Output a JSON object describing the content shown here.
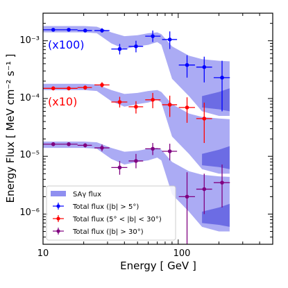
{
  "chart_data": {
    "type": "scatter",
    "xlabel": "Energy [ GeV ]",
    "ylabel": "Energy Flux [ MeV cm⁻² s⁻¹ ]",
    "xscale": "log",
    "yscale": "log",
    "xlim": [
      10,
      500
    ],
    "ylim": [
      3e-07,
      0.003
    ],
    "x_tick_labels": [
      "10",
      "100"
    ],
    "y_tick_labels": [
      "10⁻⁶",
      "10⁻⁵",
      "10⁻⁴",
      "10⁻³"
    ],
    "legend_position": "lower-left",
    "legend": [
      "SAγ flux",
      "Total flux (|b| > 5°)",
      "Total flux (5° < |b| < 30°)",
      "Total flux (|b| > 30°)"
    ],
    "annotations": [
      {
        "text": "(x100)",
        "color": "#0000ff"
      },
      {
        "text": "(x10)",
        "color": "#ff0000"
      }
    ],
    "band": {
      "name": "SAγ flux",
      "color": "#8f8ff0",
      "x": [
        10,
        20,
        25,
        32,
        40,
        50,
        60,
        70,
        75,
        90,
        120,
        150,
        200,
        240
      ],
      "groups": [
        {
          "upper": [
            0.0018,
            0.0018,
            0.00175,
            0.0014,
            0.0012,
            0.00125,
            0.00135,
            0.0014,
            0.0013,
            0.0008,
            0.00055,
            0.00048,
            0.00045,
            0.00044
          ],
          "lower": [
            0.0014,
            0.0014,
            0.00135,
            0.0009,
            0.00072,
            0.0008,
            0.00085,
            0.00095,
            0.00085,
            0.00022,
            0.00011,
            6e-05,
            5e-05,
            5e-05
          ],
          "inner_upper": [
            null,
            null,
            null,
            null,
            null,
            null,
            null,
            null,
            null,
            null,
            null,
            0.00011,
            0.00013,
            0.00015
          ],
          "inner_lower": [
            null,
            null,
            null,
            null,
            null,
            null,
            null,
            null,
            null,
            null,
            null,
            7e-05,
            6.5e-05,
            6e-05
          ]
        },
        {
          "upper": [
            0.00018,
            0.00018,
            0.000175,
            0.00014,
            0.00012,
            0.000125,
            0.000135,
            0.00014,
            0.00013,
            8e-05,
            5.5e-05,
            4.8e-05,
            4.5e-05,
            4.4e-05
          ],
          "lower": [
            0.00014,
            0.00014,
            0.000135,
            9e-05,
            7.2e-05,
            8e-05,
            8.5e-05,
            9.5e-05,
            8.5e-05,
            2.2e-05,
            1.1e-05,
            6e-06,
            5e-06,
            5e-06
          ],
          "inner_upper": [
            null,
            null,
            null,
            null,
            null,
            null,
            null,
            null,
            null,
            null,
            null,
            1.1e-05,
            1.3e-05,
            1.5e-05
          ],
          "inner_lower": [
            null,
            null,
            null,
            null,
            null,
            null,
            null,
            null,
            null,
            null,
            null,
            7e-06,
            6.5e-06,
            6e-06
          ]
        },
        {
          "upper": [
            1.8e-05,
            1.8e-05,
            1.75e-05,
            1.4e-05,
            1.2e-05,
            1.25e-05,
            1.35e-05,
            1.4e-05,
            1.3e-05,
            8e-06,
            5.5e-06,
            4.8e-06,
            4.5e-06,
            4.4e-06
          ],
          "lower": [
            1.4e-05,
            1.4e-05,
            1.35e-05,
            9e-06,
            7.2e-06,
            8e-06,
            8.5e-06,
            9.5e-06,
            8.5e-06,
            2.2e-06,
            1.1e-06,
            6e-07,
            5e-07,
            5e-07
          ],
          "inner_upper": [
            null,
            null,
            null,
            null,
            null,
            null,
            null,
            null,
            null,
            null,
            null,
            1.1e-06,
            1.3e-06,
            1.5e-06
          ],
          "inner_lower": [
            null,
            null,
            null,
            null,
            null,
            null,
            null,
            null,
            null,
            null,
            null,
            7e-07,
            6.5e-07,
            6e-07
          ]
        }
      ]
    },
    "series": [
      {
        "name": "Total flux (|b| > 5°)",
        "color": "#0000ff",
        "points": [
          {
            "x": 11.9,
            "xlo": 10,
            "xhi": 14,
            "y": 0.00155,
            "ylo": 0.00145,
            "yhi": 0.00165
          },
          {
            "x": 15.5,
            "xlo": 14,
            "xhi": 18,
            "y": 0.00155,
            "ylo": 0.00145,
            "yhi": 0.00165
          },
          {
            "x": 20.5,
            "xlo": 18,
            "xhi": 23,
            "y": 0.0015,
            "ylo": 0.0014,
            "yhi": 0.0016
          },
          {
            "x": 27.3,
            "xlo": 24,
            "xhi": 31,
            "y": 0.0015,
            "ylo": 0.00138,
            "yhi": 0.00165
          },
          {
            "x": 36.9,
            "xlo": 32,
            "xhi": 42,
            "y": 0.00072,
            "ylo": 0.00058,
            "yhi": 0.00088
          },
          {
            "x": 48.7,
            "xlo": 43,
            "xhi": 55,
            "y": 0.0008,
            "ylo": 0.00063,
            "yhi": 0.001
          },
          {
            "x": 64.8,
            "xlo": 57,
            "xhi": 74,
            "y": 0.0012,
            "ylo": 0.00095,
            "yhi": 0.0015
          },
          {
            "x": 86.6,
            "xlo": 76,
            "xhi": 98,
            "y": 0.00105,
            "ylo": 0.00072,
            "yhi": 0.00145
          },
          {
            "x": 116.2,
            "xlo": 101,
            "xhi": 133,
            "y": 0.00038,
            "ylo": 0.00023,
            "yhi": 0.00056
          },
          {
            "x": 155.7,
            "xlo": 136,
            "xhi": 178,
            "y": 0.00035,
            "ylo": 0.00019,
            "yhi": 0.00053
          },
          {
            "x": 211,
            "xlo": 183,
            "xhi": 241,
            "y": 0.00023,
            "ylo": 6e-05,
            "yhi": 0.00045
          }
        ]
      },
      {
        "name": "Total flux (5° < |b| < 30°)",
        "color": "#ff0000",
        "points": [
          {
            "x": 11.9,
            "xlo": 10,
            "xhi": 14,
            "y": 0.00015,
            "ylo": 0.000138,
            "yhi": 0.000162
          },
          {
            "x": 15.5,
            "xlo": 14,
            "xhi": 18,
            "y": 0.00015,
            "ylo": 0.000138,
            "yhi": 0.000162
          },
          {
            "x": 20.5,
            "xlo": 18,
            "xhi": 23,
            "y": 0.000155,
            "ylo": 0.000142,
            "yhi": 0.000168
          },
          {
            "x": 27.3,
            "xlo": 24,
            "xhi": 31,
            "y": 0.000172,
            "ylo": 0.000155,
            "yhi": 0.000192
          },
          {
            "x": 36.9,
            "xlo": 32,
            "xhi": 42,
            "y": 8.7e-05,
            "ylo": 7e-05,
            "yhi": 0.000107
          },
          {
            "x": 48.7,
            "xlo": 43,
            "xhi": 55,
            "y": 7.2e-05,
            "ylo": 5.5e-05,
            "yhi": 9e-05
          },
          {
            "x": 64.8,
            "xlo": 57,
            "xhi": 74,
            "y": 9.5e-05,
            "ylo": 6.8e-05,
            "yhi": 0.000125
          },
          {
            "x": 86.6,
            "xlo": 76,
            "xhi": 98,
            "y": 7.8e-05,
            "ylo": 4.8e-05,
            "yhi": 0.000112
          },
          {
            "x": 116.2,
            "xlo": 101,
            "xhi": 133,
            "y": 7e-05,
            "ylo": 3.8e-05,
            "yhi": 0.000105
          },
          {
            "x": 155.7,
            "xlo": 136,
            "xhi": 178,
            "y": 4.5e-05,
            "ylo": 1.7e-05,
            "yhi": 8.5e-05
          }
        ]
      },
      {
        "name": "Total flux (|b| > 30°)",
        "color": "#800080",
        "points": [
          {
            "x": 11.9,
            "xlo": 10,
            "xhi": 14,
            "y": 1.62e-05,
            "ylo": 1.5e-05,
            "yhi": 1.75e-05
          },
          {
            "x": 15.5,
            "xlo": 14,
            "xhi": 18,
            "y": 1.62e-05,
            "ylo": 1.5e-05,
            "yhi": 1.75e-05
          },
          {
            "x": 20.5,
            "xlo": 18,
            "xhi": 23,
            "y": 1.55e-05,
            "ylo": 1.42e-05,
            "yhi": 1.68e-05
          },
          {
            "x": 27.3,
            "xlo": 24,
            "xhi": 31,
            "y": 1.4e-05,
            "ylo": 1.22e-05,
            "yhi": 1.6e-05
          },
          {
            "x": 36.9,
            "xlo": 32,
            "xhi": 42,
            "y": 6.4e-06,
            "ylo": 4.8e-06,
            "yhi": 8.3e-06
          },
          {
            "x": 48.7,
            "xlo": 43,
            "xhi": 55,
            "y": 8.3e-06,
            "ylo": 6.2e-06,
            "yhi": 1.1e-05
          },
          {
            "x": 64.8,
            "xlo": 57,
            "xhi": 74,
            "y": 1.35e-05,
            "ylo": 1.05e-05,
            "yhi": 1.7e-05
          },
          {
            "x": 86.6,
            "xlo": 76,
            "xhi": 98,
            "y": 1.22e-05,
            "ylo": 8.5e-06,
            "yhi": 1.65e-05
          },
          {
            "x": 116.2,
            "xlo": 101,
            "xhi": 133,
            "y": 2e-06,
            "ylo": 3e-07,
            "yhi": 5.3e-06
          },
          {
            "x": 155.7,
            "xlo": 136,
            "xhi": 178,
            "y": 2.7e-06,
            "ylo": 1e-06,
            "yhi": 5e-06
          },
          {
            "x": 211,
            "xlo": 183,
            "xhi": 241,
            "y": 3.5e-06,
            "ylo": 1.3e-06,
            "yhi": 7.2e-06
          }
        ]
      }
    ]
  }
}
